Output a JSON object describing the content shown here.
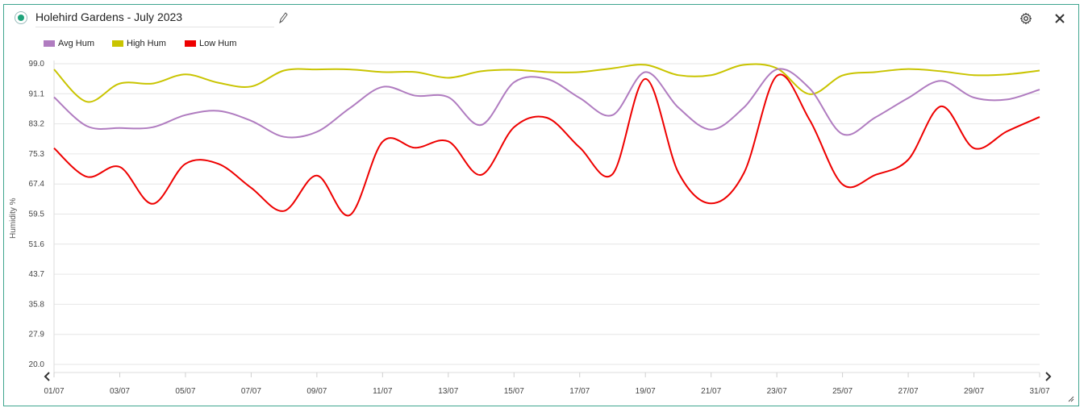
{
  "header": {
    "title": "Holehird Gardens - July 2023",
    "status_color": "#1fa37a",
    "edit_icon": "pencil-icon",
    "settings_icon": "gear-icon",
    "close_icon": "close-icon"
  },
  "chart_data": {
    "type": "line",
    "ylabel": "Humidity %",
    "ylim": [
      20.0,
      99.0
    ],
    "y_ticks": [
      "20.0",
      "27.9",
      "35.8",
      "43.7",
      "51.6",
      "59.5",
      "67.4",
      "75.3",
      "83.2",
      "91.1",
      "99.0"
    ],
    "x_ticks": [
      "01/07",
      "03/07",
      "05/07",
      "07/07",
      "09/07",
      "11/07",
      "13/07",
      "15/07",
      "17/07",
      "19/07",
      "21/07",
      "23/07",
      "25/07",
      "27/07",
      "29/07",
      "31/07"
    ],
    "x_range": [
      "2023-07-01",
      "2023-07-31"
    ],
    "grid": true,
    "legend": "top-left",
    "series": [
      {
        "name": "Avg Hum",
        "color": "#b07cc0",
        "points": [
          [
            "2023-07-01",
            90.2
          ],
          [
            "2023-07-02",
            82.6
          ],
          [
            "2023-07-03",
            82.1
          ],
          [
            "2023-07-04",
            82.3
          ],
          [
            "2023-07-05",
            85.5
          ],
          [
            "2023-07-06",
            86.6
          ],
          [
            "2023-07-07",
            84.0
          ],
          [
            "2023-07-08",
            79.8
          ],
          [
            "2023-07-09",
            81.1
          ],
          [
            "2023-07-10",
            87.3
          ],
          [
            "2023-07-11",
            92.9
          ],
          [
            "2023-07-12",
            90.6
          ],
          [
            "2023-07-13",
            90.2
          ],
          [
            "2023-07-14",
            82.9
          ],
          [
            "2023-07-15",
            94.1
          ],
          [
            "2023-07-16",
            95.0
          ],
          [
            "2023-07-17",
            90.0
          ],
          [
            "2023-07-18",
            85.5
          ],
          [
            "2023-07-19",
            96.8
          ],
          [
            "2023-07-20",
            87.5
          ],
          [
            "2023-07-21",
            81.7
          ],
          [
            "2023-07-22",
            87.5
          ],
          [
            "2023-07-23",
            97.5
          ],
          [
            "2023-07-24",
            92.5
          ],
          [
            "2023-07-25",
            80.5
          ],
          [
            "2023-07-26",
            84.9
          ],
          [
            "2023-07-27",
            90.0
          ],
          [
            "2023-07-28",
            94.5
          ],
          [
            "2023-07-29",
            90.1
          ],
          [
            "2023-07-30",
            89.6
          ],
          [
            "2023-07-31",
            92.2
          ]
        ]
      },
      {
        "name": "High Hum",
        "color": "#c9c400",
        "points": [
          [
            "2023-07-01",
            97.5
          ],
          [
            "2023-07-02",
            89.0
          ],
          [
            "2023-07-03",
            93.8
          ],
          [
            "2023-07-04",
            93.8
          ],
          [
            "2023-07-05",
            96.2
          ],
          [
            "2023-07-06",
            94.0
          ],
          [
            "2023-07-07",
            93.0
          ],
          [
            "2023-07-08",
            97.2
          ],
          [
            "2023-07-09",
            97.5
          ],
          [
            "2023-07-10",
            97.5
          ],
          [
            "2023-07-11",
            96.8
          ],
          [
            "2023-07-12",
            96.8
          ],
          [
            "2023-07-13",
            95.3
          ],
          [
            "2023-07-14",
            97.0
          ],
          [
            "2023-07-15",
            97.4
          ],
          [
            "2023-07-16",
            96.8
          ],
          [
            "2023-07-17",
            96.8
          ],
          [
            "2023-07-18",
            97.8
          ],
          [
            "2023-07-19",
            98.7
          ],
          [
            "2023-07-20",
            96.0
          ],
          [
            "2023-07-21",
            96.0
          ],
          [
            "2023-07-22",
            98.7
          ],
          [
            "2023-07-23",
            97.8
          ],
          [
            "2023-07-24",
            91.0
          ],
          [
            "2023-07-25",
            95.9
          ],
          [
            "2023-07-26",
            96.8
          ],
          [
            "2023-07-27",
            97.6
          ],
          [
            "2023-07-28",
            97.0
          ],
          [
            "2023-07-29",
            96.0
          ],
          [
            "2023-07-30",
            96.2
          ],
          [
            "2023-07-31",
            97.2
          ]
        ]
      },
      {
        "name": "Low Hum",
        "color": "#ee0000",
        "points": [
          [
            "2023-07-01",
            76.8
          ],
          [
            "2023-07-02",
            69.3
          ],
          [
            "2023-07-03",
            71.9
          ],
          [
            "2023-07-04",
            62.2
          ],
          [
            "2023-07-05",
            72.7
          ],
          [
            "2023-07-06",
            72.7
          ],
          [
            "2023-07-07",
            66.4
          ],
          [
            "2023-07-08",
            60.3
          ],
          [
            "2023-07-09",
            69.6
          ],
          [
            "2023-07-10",
            59.2
          ],
          [
            "2023-07-11",
            78.5
          ],
          [
            "2023-07-12",
            76.9
          ],
          [
            "2023-07-13",
            78.6
          ],
          [
            "2023-07-14",
            69.8
          ],
          [
            "2023-07-15",
            82.3
          ],
          [
            "2023-07-16",
            84.8
          ],
          [
            "2023-07-17",
            77.0
          ],
          [
            "2023-07-18",
            70.0
          ],
          [
            "2023-07-19",
            95.0
          ],
          [
            "2023-07-20",
            70.5
          ],
          [
            "2023-07-21",
            62.3
          ],
          [
            "2023-07-22",
            70.3
          ],
          [
            "2023-07-23",
            95.8
          ],
          [
            "2023-07-24",
            84.2
          ],
          [
            "2023-07-25",
            67.3
          ],
          [
            "2023-07-26",
            69.8
          ],
          [
            "2023-07-27",
            73.8
          ],
          [
            "2023-07-28",
            87.8
          ],
          [
            "2023-07-29",
            76.8
          ],
          [
            "2023-07-30",
            81.2
          ],
          [
            "2023-07-31",
            85.0
          ]
        ]
      }
    ]
  }
}
